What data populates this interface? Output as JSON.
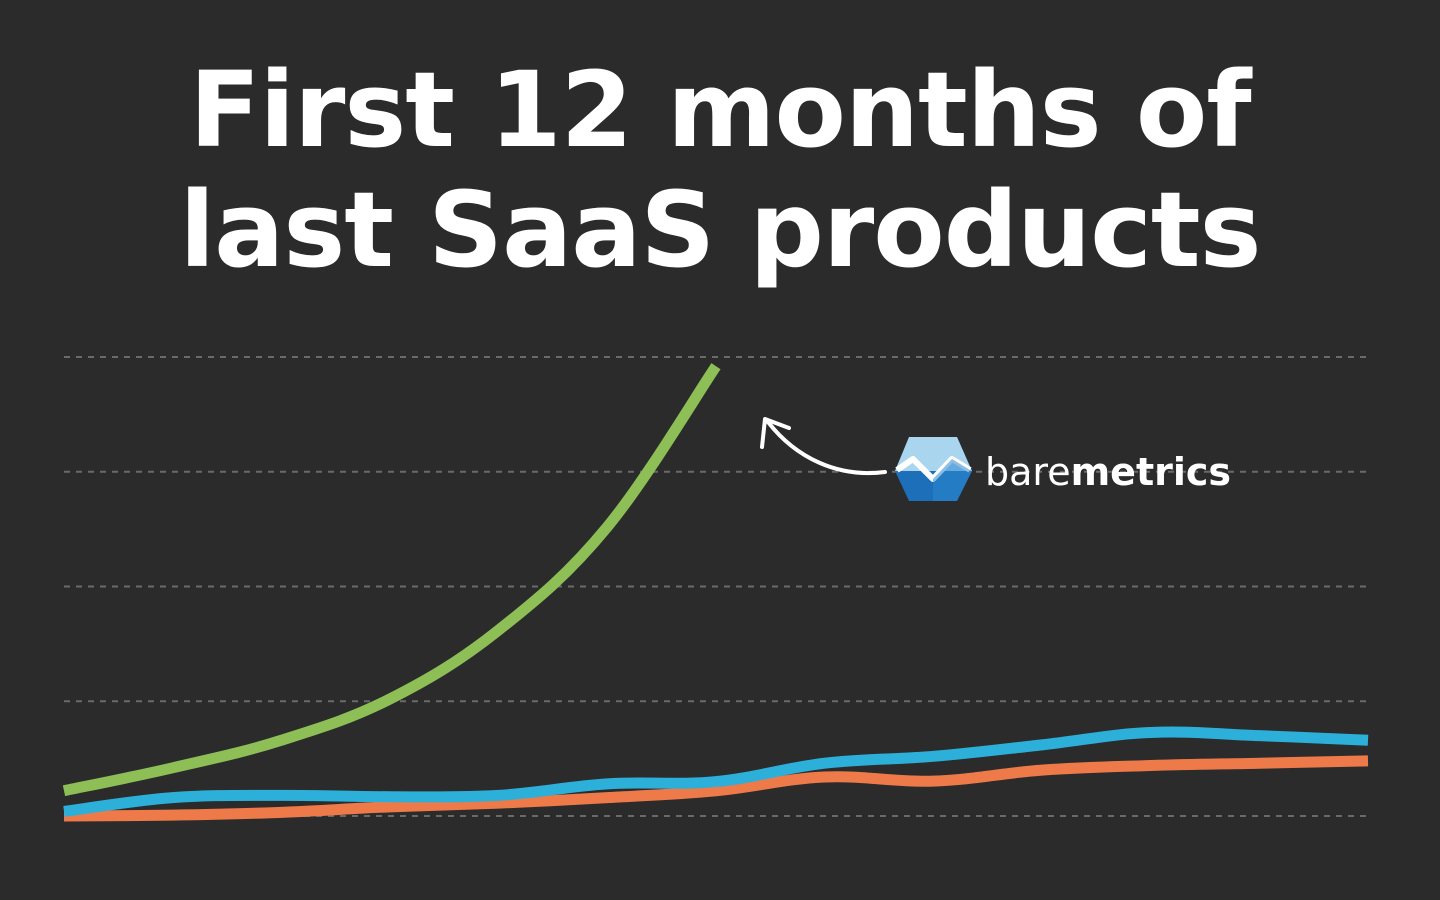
{
  "title": {
    "line1": "First 12 months of",
    "line2": "last SaaS products"
  },
  "annotation": {
    "brand_light": "bare",
    "brand_bold": "metrics",
    "logo_icon": "baremetrics-logo-icon",
    "arrow_icon": "curved-arrow-icon"
  },
  "colors": {
    "background": "#2b2b2b",
    "grid": "#6a6a6a",
    "baremetrics": "#8dbf56",
    "product_blue": "#2cb0d9",
    "product_orange": "#ee7a4a",
    "logo_light": "#a9d6ee",
    "logo_dark": "#1c6fb8"
  },
  "chart_data": {
    "type": "line",
    "title": "First 12 months of last SaaS products",
    "xlabel": "",
    "ylabel": "",
    "grid": true,
    "gridlines": 5,
    "ylim": [
      0,
      100
    ],
    "series": [
      {
        "key": "baremetrics",
        "name": "baremetrics",
        "color": "#8dbf56",
        "x": [
          0,
          1,
          2,
          3,
          4,
          5,
          6
        ],
        "values": [
          5.5,
          10.5,
          16.5,
          25.5,
          40.5,
          63,
          98
        ]
      },
      {
        "key": "blue",
        "color": "#2cb0d9",
        "x": [
          0,
          1,
          2,
          3,
          4,
          5,
          6,
          7,
          8,
          9,
          10,
          11,
          12
        ],
        "values": [
          1,
          4,
          4.5,
          4.2,
          4.5,
          7,
          7.5,
          11.5,
          13,
          15.5,
          18.2,
          17.5,
          16.5
        ]
      },
      {
        "key": "orange",
        "color": "#ee7a4a",
        "x": [
          0,
          1,
          2,
          3,
          4,
          5,
          6,
          7,
          8,
          9,
          10,
          11,
          12
        ],
        "values": [
          0,
          0.2,
          0.8,
          2,
          2.8,
          4,
          5.5,
          8.5,
          7.6,
          10,
          11,
          11.5,
          12
        ]
      }
    ],
    "annotation_target": {
      "series": "baremetrics",
      "x": 5.93,
      "y": 88
    }
  }
}
